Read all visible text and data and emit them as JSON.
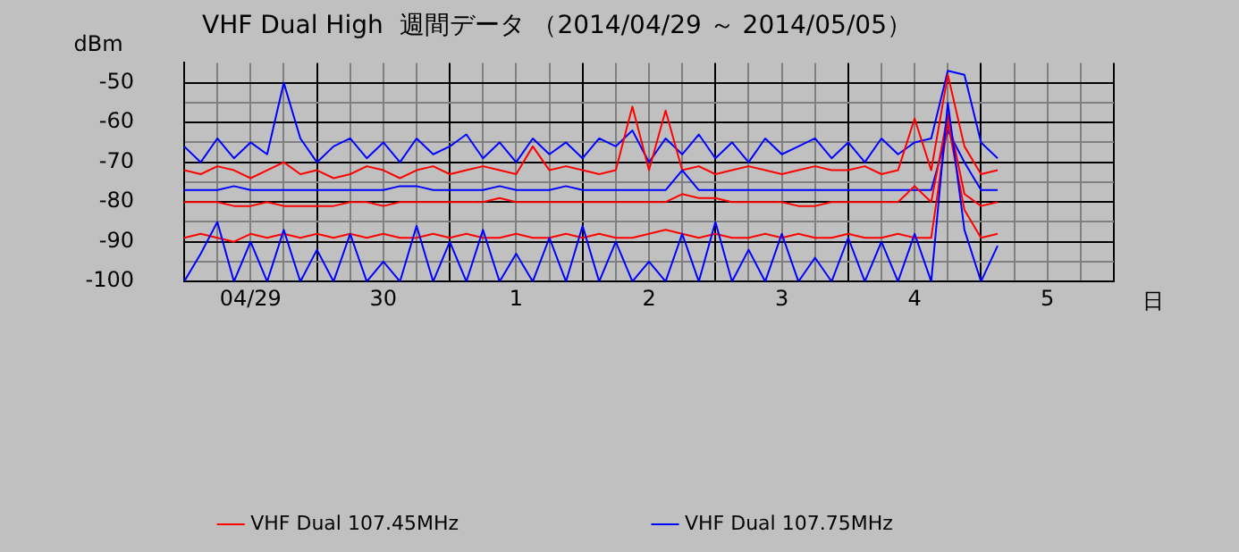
{
  "chart_data": {
    "type": "line",
    "title": "VHF Dual High  週間データ （2014/04/29 ～ 2014/05/05）",
    "ylabel": "dBm",
    "xlabel": "日",
    "x": [
      "2014-04-29T00:00",
      "2014-04-29T03:00",
      "2014-04-29T06:00",
      "2014-04-29T09:00",
      "2014-04-29T12:00",
      "2014-04-29T15:00",
      "2014-04-29T18:00",
      "2014-04-29T21:00",
      "2014-04-30T00:00",
      "2014-04-30T03:00",
      "2014-04-30T06:00",
      "2014-04-30T09:00",
      "2014-04-30T12:00",
      "2014-04-30T15:00",
      "2014-04-30T18:00",
      "2014-04-30T21:00",
      "2014-05-01T00:00",
      "2014-05-01T03:00",
      "2014-05-01T06:00",
      "2014-05-01T09:00",
      "2014-05-01T12:00",
      "2014-05-01T15:00",
      "2014-05-01T18:00",
      "2014-05-01T21:00",
      "2014-05-02T00:00",
      "2014-05-02T03:00",
      "2014-05-02T06:00",
      "2014-05-02T09:00",
      "2014-05-02T12:00",
      "2014-05-02T15:00",
      "2014-05-02T18:00",
      "2014-05-02T21:00",
      "2014-05-03T00:00",
      "2014-05-03T03:00",
      "2014-05-03T06:00",
      "2014-05-03T09:00",
      "2014-05-03T12:00",
      "2014-05-03T15:00",
      "2014-05-03T18:00",
      "2014-05-03T21:00",
      "2014-05-04T00:00",
      "2014-05-04T03:00",
      "2014-05-04T06:00",
      "2014-05-04T09:00",
      "2014-05-04T12:00",
      "2014-05-04T15:00",
      "2014-05-04T18:00",
      "2014-05-04T21:00",
      "2014-05-05T00:00",
      "2014-05-05T03:00"
    ],
    "series": [
      {
        "color": "#0000ff",
        "values": [
          -100,
          -93,
          -85,
          -100,
          -90,
          -100,
          -87,
          -100,
          -92,
          -100,
          -88,
          -100,
          -95,
          -100,
          -86,
          -100,
          -90,
          -100,
          -87,
          -100,
          -93,
          -100,
          -89,
          -100,
          -86,
          -100,
          -90,
          -100,
          -95,
          -100,
          -88,
          -100,
          -85,
          -100,
          -92,
          -100,
          -88,
          -100,
          -94,
          -100,
          -89,
          -100,
          -90,
          -100,
          -88,
          -100,
          -55,
          -87,
          -100,
          -91
        ]
      },
      {
        "color": "#ff0000",
        "values": [
          -89,
          -88,
          -89,
          -90,
          -88,
          -89,
          -88,
          -89,
          -88,
          -89,
          -88,
          -89,
          -88,
          -89,
          -89,
          -88,
          -89,
          -88,
          -89,
          -89,
          -88,
          -89,
          -89,
          -88,
          -89,
          -88,
          -89,
          -89,
          -88,
          -87,
          -88,
          -89,
          -88,
          -89,
          -89,
          -88,
          -89,
          -88,
          -89,
          -89,
          -88,
          -89,
          -89,
          -88,
          -89,
          -89,
          -60,
          -82,
          -89,
          -88
        ]
      },
      {
        "color": "#ff0000",
        "values": [
          -80,
          -80,
          -80,
          -81,
          -81,
          -80,
          -81,
          -81,
          -81,
          -81,
          -80,
          -80,
          -81,
          -80,
          -80,
          -80,
          -80,
          -80,
          -80,
          -79,
          -80,
          -80,
          -80,
          -80,
          -80,
          -80,
          -80,
          -80,
          -80,
          -80,
          -78,
          -79,
          -79,
          -80,
          -80,
          -80,
          -80,
          -81,
          -81,
          -80,
          -80,
          -80,
          -80,
          -80,
          -76,
          -80,
          -58,
          -78,
          -81,
          -80
        ]
      },
      {
        "color": "#0000ff",
        "values": [
          -77,
          -77,
          -77,
          -76,
          -77,
          -77,
          -77,
          -77,
          -77,
          -77,
          -77,
          -77,
          -77,
          -76,
          -76,
          -77,
          -77,
          -77,
          -77,
          -76,
          -77,
          -77,
          -77,
          -76,
          -77,
          -77,
          -77,
          -77,
          -77,
          -77,
          -72,
          -77,
          -77,
          -77,
          -77,
          -77,
          -77,
          -77,
          -77,
          -77,
          -77,
          -77,
          -77,
          -77,
          -77,
          -77,
          -62,
          -70,
          -77,
          -77
        ]
      },
      {
        "name": "VHF Dual 107.45MHz",
        "color": "#ff0000",
        "values": [
          -72,
          -73,
          -71,
          -72,
          -74,
          -72,
          -70,
          -73,
          -72,
          -74,
          -73,
          -71,
          -72,
          -74,
          -72,
          -71,
          -73,
          -72,
          -71,
          -72,
          -73,
          -66,
          -72,
          -71,
          -72,
          -73,
          -72,
          -56,
          -72,
          -57,
          -72,
          -71,
          -73,
          -72,
          -71,
          -72,
          -73,
          -72,
          -71,
          -72,
          -72,
          -71,
          -73,
          -72,
          -59,
          -72,
          -48,
          -66,
          -73,
          -72
        ]
      },
      {
        "name": "VHF Dual 107.75MHz",
        "color": "#0000ff",
        "values": [
          -66,
          -70,
          -64,
          -69,
          -65,
          -68,
          -50,
          -64,
          -70,
          -66,
          -64,
          -69,
          -65,
          -70,
          -64,
          -68,
          -66,
          -63,
          -69,
          -65,
          -70,
          -64,
          -68,
          -65,
          -69,
          -64,
          -66,
          -62,
          -70,
          -64,
          -68,
          -63,
          -69,
          -65,
          -70,
          -64,
          -68,
          -66,
          -64,
          -69,
          -65,
          -70,
          -64,
          -68,
          -65,
          -64,
          -47,
          -48,
          -65,
          -69
        ]
      }
    ],
    "xlim": [
      "2014-04-29T00:00",
      "2014-05-06T00:00"
    ],
    "xticks": [
      {
        "value": "2014-04-29T00:00",
        "label": null
      },
      {
        "value": "2014-04-29T06:00",
        "label": null
      },
      {
        "value": "2014-04-29T12:00",
        "label": "04/29"
      },
      {
        "value": "2014-04-29T18:00",
        "label": null
      },
      {
        "value": "2014-04-30T00:00",
        "label": null
      },
      {
        "value": "2014-04-30T06:00",
        "label": null
      },
      {
        "value": "2014-04-30T12:00",
        "label": "30"
      },
      {
        "value": "2014-04-30T18:00",
        "label": null
      },
      {
        "value": "2014-05-01T00:00",
        "label": null
      },
      {
        "value": "2014-05-01T06:00",
        "label": null
      },
      {
        "value": "2014-05-01T12:00",
        "label": "1"
      },
      {
        "value": "2014-05-01T18:00",
        "label": null
      },
      {
        "value": "2014-05-02T00:00",
        "label": null
      },
      {
        "value": "2014-05-02T06:00",
        "label": null
      },
      {
        "value": "2014-05-02T12:00",
        "label": "2"
      },
      {
        "value": "2014-05-02T18:00",
        "label": null
      },
      {
        "value": "2014-05-03T00:00",
        "label": null
      },
      {
        "value": "2014-05-03T06:00",
        "label": null
      },
      {
        "value": "2014-05-03T12:00",
        "label": "3"
      },
      {
        "value": "2014-05-03T18:00",
        "label": null
      },
      {
        "value": "2014-05-04T00:00",
        "label": null
      },
      {
        "value": "2014-05-04T06:00",
        "label": null
      },
      {
        "value": "2014-05-04T12:00",
        "label": "4"
      },
      {
        "value": "2014-05-04T18:00",
        "label": null
      },
      {
        "value": "2014-05-05T00:00",
        "label": null
      },
      {
        "value": "2014-05-05T06:00",
        "label": null
      },
      {
        "value": "2014-05-05T12:00",
        "label": "5"
      },
      {
        "value": "2014-05-05T18:00",
        "label": null
      },
      {
        "value": "2014-05-06T00:00",
        "label": null
      }
    ],
    "ylim": [
      -100,
      -45
    ],
    "yticks": [
      -100,
      {
        "value": -95,
        "label": null
      },
      -90,
      {
        "value": -85,
        "label": null
      },
      -80,
      {
        "value": -75,
        "label": null
      },
      -70,
      {
        "value": -65,
        "label": null
      },
      -60,
      {
        "value": -55,
        "label": null
      },
      -50
    ],
    "grid": true,
    "legend": "bottom",
    "marker": "none"
  }
}
